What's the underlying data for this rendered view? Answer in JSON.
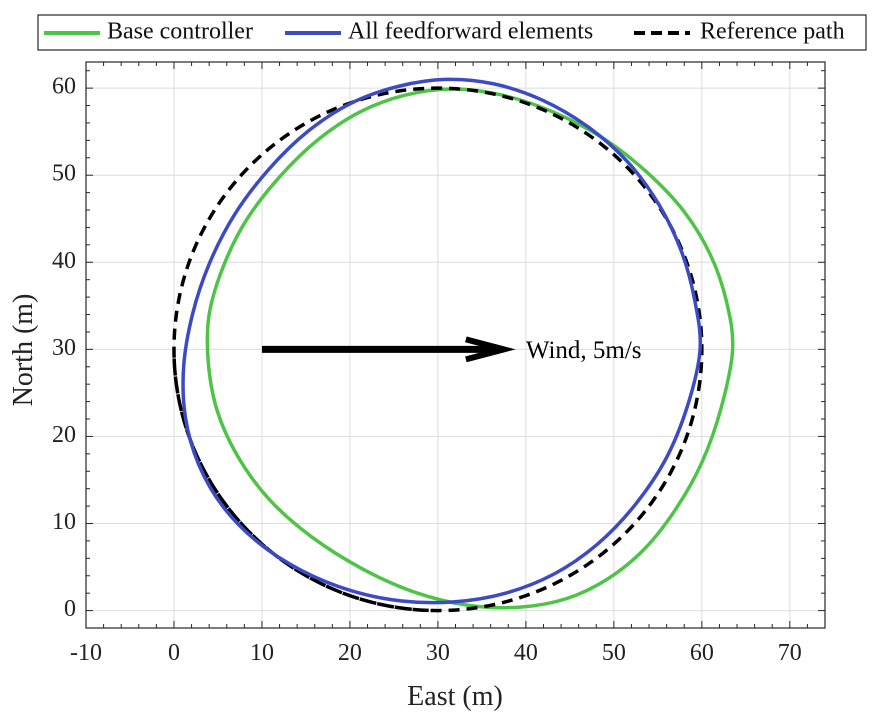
{
  "chart_data": {
    "type": "line",
    "xlabel": "East (m)",
    "ylabel": "North (m)",
    "xlim": [
      -10,
      74
    ],
    "ylim": [
      -2,
      63
    ],
    "x_ticks": [
      -10,
      0,
      10,
      20,
      30,
      40,
      50,
      60,
      70
    ],
    "y_ticks": [
      0,
      10,
      20,
      30,
      40,
      50,
      60
    ],
    "grid": true,
    "legend": {
      "placement": "top",
      "entries": [
        "Base controller",
        "All feedforward elements",
        "Reference path"
      ]
    },
    "series": [
      {
        "name": "Base controller",
        "color": "#4ec447",
        "style": "solid",
        "shape": "closed-loop",
        "x": [
          63.5,
          62.8,
          61.0,
          58.0,
          53.8,
          48.7,
          43.0,
          37.3,
          31.7,
          26.3,
          21.2,
          16.4,
          12.0,
          8.2,
          5.6,
          4.0,
          3.9,
          4.9,
          7.2,
          10.8,
          15.6,
          21.4,
          27.4,
          33.5,
          39.4,
          44.7,
          49.4,
          53.5,
          57.0,
          60.0,
          62.2,
          63.5
        ],
        "y": [
          30.0,
          35.5,
          40.8,
          45.8,
          50.3,
          54.3,
          57.3,
          59.2,
          59.9,
          59.2,
          57.3,
          54.1,
          49.8,
          44.8,
          39.5,
          34.0,
          28.5,
          23.0,
          17.8,
          12.8,
          8.5,
          4.8,
          2.1,
          0.6,
          0.4,
          1.4,
          3.7,
          7.1,
          11.6,
          17.0,
          23.3,
          30.0
        ]
      },
      {
        "name": "All feedforward elements",
        "color": "#3c4bc4",
        "style": "solid",
        "shape": "closed-loop",
        "x": [
          59.8,
          59.2,
          57.7,
          55.2,
          51.6,
          47.0,
          41.7,
          36.3,
          30.9,
          25.5,
          20.2,
          15.3,
          10.8,
          6.9,
          4.0,
          2.1,
          1.1,
          1.3,
          2.8,
          5.6,
          9.6,
          14.5,
          20.1,
          25.9,
          31.8,
          37.7,
          43.2,
          48.1,
          52.3,
          55.9,
          58.4,
          59.8
        ],
        "y": [
          30.0,
          35.6,
          41.2,
          46.5,
          51.5,
          55.6,
          58.7,
          60.5,
          61.0,
          60.2,
          58.3,
          55.1,
          50.7,
          45.5,
          39.8,
          34.0,
          28.0,
          22.2,
          16.8,
          11.9,
          7.8,
          4.6,
          2.3,
          1.1,
          1.0,
          2.0,
          4.2,
          7.6,
          12.0,
          17.4,
          23.6,
          30.0
        ]
      },
      {
        "name": "Reference path",
        "color": "#000000",
        "style": "dashed",
        "shape": "circle",
        "center": [
          30,
          30
        ],
        "radius": 30,
        "theta_deg": [
          -178,
          268
        ]
      }
    ],
    "annotations": [
      {
        "type": "arrow",
        "from": [
          10,
          30
        ],
        "to": [
          37.5,
          30
        ],
        "label": "Wind, 5m/s",
        "label_x": 40,
        "label_y": 30
      }
    ]
  }
}
